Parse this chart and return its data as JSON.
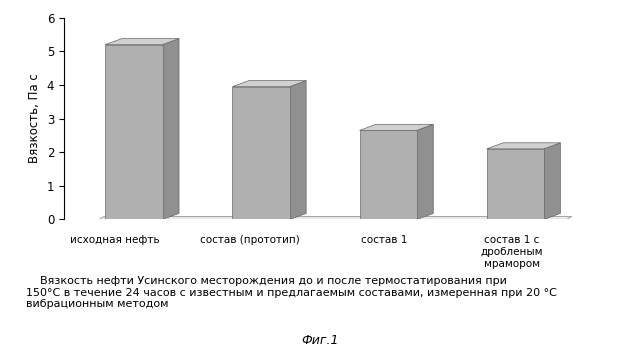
{
  "categories": [
    "исходная\nнефть",
    "состав (прототип)",
    "состав 1",
    "состав 1 с\nдробленым\nмрамором"
  ],
  "values": [
    5.2,
    3.95,
    2.65,
    2.1
  ],
  "bar_color_face": "#b0b0b0",
  "bar_color_dark": "#909090",
  "bar_color_top": "#d0d0d0",
  "floor_color": "#e8e8e8",
  "floor_edge": "#999999",
  "ylabel": "Вязкость, Па с",
  "ylim": [
    0,
    6
  ],
  "yticks": [
    0,
    1,
    2,
    3,
    4,
    5,
    6
  ],
  "fig_caption_indent": "    Вязкость нефти Усинского месторождения до и после термостатирования при\n150°C в течение 24 часов с известным и предлагаемым составами, измеренная при 20 °C\nвибрационным методом",
  "fig_label": "Фиг.1",
  "ddx": 0.13,
  "ddy": 0.18,
  "bar_width": 0.45
}
